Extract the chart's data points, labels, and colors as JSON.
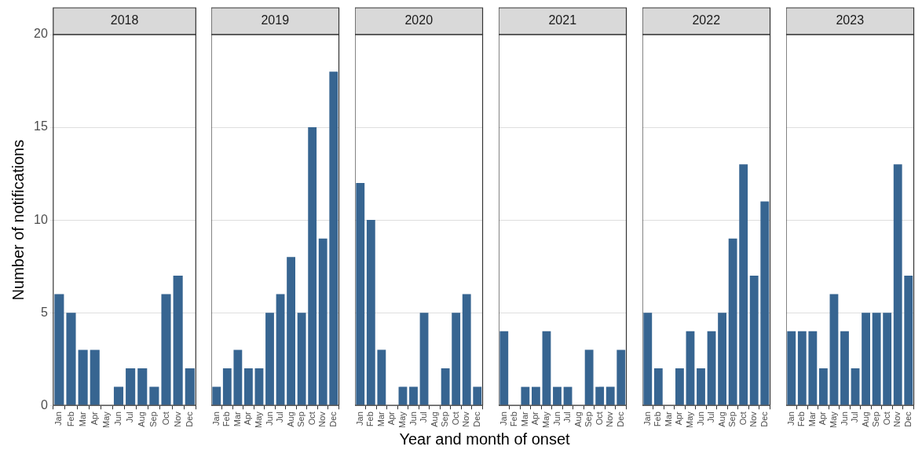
{
  "chart_data": [
    {
      "type": "bar",
      "title": "2018",
      "ylabel": "Number of notifications",
      "categories": [
        "Jan",
        "Feb",
        "Mar",
        "Apr",
        "May",
        "Jun",
        "Jul",
        "Aug",
        "Sep",
        "Oct",
        "Nov",
        "Dec"
      ],
      "values": [
        6,
        5,
        3,
        3,
        0,
        1,
        2,
        2,
        1,
        6,
        7,
        2
      ],
      "color": "#376591",
      "ylim": [
        0,
        20
      ],
      "yticks": [
        0,
        5,
        10,
        15,
        20
      ],
      "grid": "y"
    },
    {
      "type": "bar",
      "title": "2019",
      "categories": [
        "Jan",
        "Feb",
        "Mar",
        "Apr",
        "May",
        "Jun",
        "Jul",
        "Aug",
        "Sep",
        "Oct",
        "Nov",
        "Dec"
      ],
      "values": [
        1,
        2,
        3,
        2,
        2,
        5,
        6,
        8,
        5,
        15,
        9,
        18
      ],
      "color": "#376591",
      "ylim": [
        0,
        20
      ],
      "yticks": [
        0,
        5,
        10,
        15,
        20
      ],
      "grid": "y",
      "tick_labels": "x"
    },
    {
      "type": "bar",
      "title": "2020",
      "xlabel": "Year and month of onset",
      "categories": [
        "Jan",
        "Feb",
        "Mar",
        "Apr",
        "May",
        "Jun",
        "Jul",
        "Aug",
        "Sep",
        "Oct",
        "Nov",
        "Dec"
      ],
      "values": [
        12,
        10,
        3,
        0,
        1,
        1,
        5,
        0,
        2,
        5,
        6,
        1
      ],
      "color": "#376591",
      "ylim": [
        0,
        20
      ],
      "yticks": [
        0,
        5,
        10,
        15,
        20
      ],
      "grid": "y",
      "tick_labels": "x"
    },
    {
      "type": "bar",
      "title": "2021",
      "categories": [
        "Jan",
        "Feb",
        "Mar",
        "Apr",
        "May",
        "Jun",
        "Jul",
        "Aug",
        "Sep",
        "Oct",
        "Nov",
        "Dec"
      ],
      "values": [
        4,
        0,
        1,
        1,
        4,
        1,
        1,
        0,
        3,
        1,
        1,
        3
      ],
      "color": "#376591",
      "ylim": [
        0,
        20
      ],
      "yticks": [
        0,
        5,
        10,
        15,
        20
      ],
      "grid": "y",
      "tick_labels": "x"
    },
    {
      "type": "bar",
      "title": "2022",
      "categories": [
        "Jan",
        "Feb",
        "Mar",
        "Apr",
        "May",
        "Jun",
        "Jul",
        "Aug",
        "Sep",
        "Oct",
        "Nov",
        "Dec"
      ],
      "values": [
        5,
        2,
        0,
        2,
        4,
        2,
        4,
        5,
        9,
        13,
        7,
        11
      ],
      "color": "#376591",
      "ylim": [
        0,
        20
      ],
      "yticks": [
        0,
        5,
        10,
        15,
        20
      ],
      "grid": "y",
      "tick_labels": "x"
    },
    {
      "type": "bar",
      "title": "2023",
      "categories": [
        "Jan",
        "Feb",
        "Mar",
        "Apr",
        "May",
        "Jun",
        "Jul",
        "Aug",
        "Sep",
        "Oct",
        "Nov",
        "Dec"
      ],
      "values": [
        4,
        4,
        4,
        2,
        6,
        4,
        2,
        5,
        5,
        5,
        13,
        7
      ],
      "color": "#376591",
      "ylim": [
        0,
        20
      ],
      "yticks": [
        0,
        5,
        10,
        15,
        20
      ],
      "grid": "y",
      "tick_labels": "x"
    }
  ]
}
